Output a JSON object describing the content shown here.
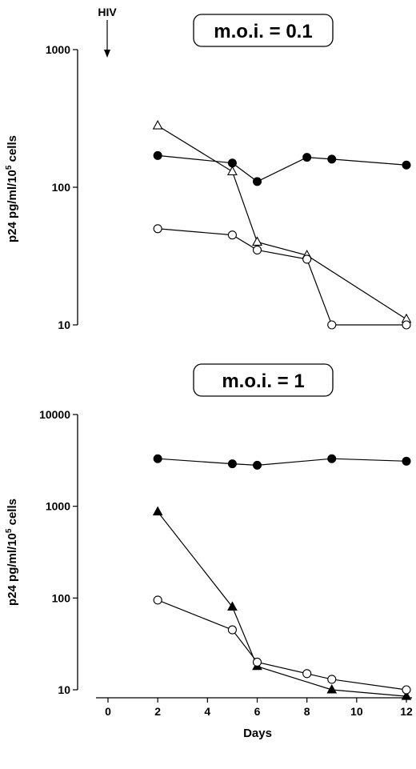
{
  "annotation": {
    "hiv": "HIV"
  },
  "chart_data": [
    {
      "type": "line",
      "title": "m.o.i. = 0.1",
      "ylabel": "p24 pg/ml/10",
      "ylabel_superscript": "5",
      "ylabel_suffix": " cells",
      "yscale": "log",
      "ylim": [
        10,
        1000
      ],
      "yticks": [
        1000,
        100,
        10
      ],
      "xlim": [
        0,
        12
      ],
      "series": [
        {
          "marker": "filled-circle",
          "x": [
            2,
            5,
            6,
            8,
            9,
            12
          ],
          "y": [
            170,
            150,
            110,
            165,
            160,
            145
          ]
        },
        {
          "marker": "open-triangle",
          "x": [
            2,
            5,
            6,
            8,
            12
          ],
          "y": [
            280,
            130,
            40,
            32,
            11
          ]
        },
        {
          "marker": "open-circle",
          "x": [
            2,
            5,
            6,
            8,
            9,
            12
          ],
          "y": [
            50,
            45,
            35,
            30,
            10,
            10
          ]
        }
      ]
    },
    {
      "type": "line",
      "title": "m.o.i. = 1",
      "ylabel": "p24 pg/ml/10",
      "ylabel_superscript": "5",
      "ylabel_suffix": " cells",
      "xlabel": "Days",
      "yscale": "log",
      "ylim": [
        10,
        10000
      ],
      "yticks": [
        10000,
        1000,
        100,
        10
      ],
      "xlim": [
        0,
        12
      ],
      "xticks": [
        0,
        2,
        4,
        6,
        8,
        10,
        12
      ],
      "series": [
        {
          "marker": "filled-circle",
          "x": [
            2,
            5,
            6,
            9,
            12
          ],
          "y": [
            3300,
            2900,
            2800,
            3300,
            3100
          ]
        },
        {
          "marker": "filled-triangle",
          "x": [
            2,
            5,
            6,
            9,
            12
          ],
          "y": [
            870,
            80,
            18,
            10,
            8.5
          ]
        },
        {
          "marker": "open-circle",
          "x": [
            2,
            5,
            6,
            8,
            9,
            12
          ],
          "y": [
            95,
            45,
            20,
            15,
            13,
            10
          ]
        }
      ]
    }
  ]
}
